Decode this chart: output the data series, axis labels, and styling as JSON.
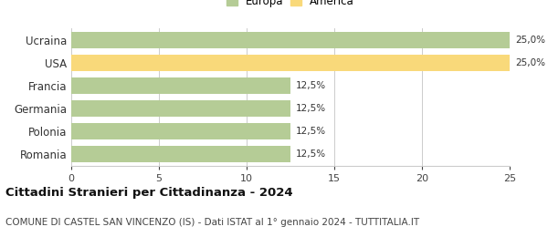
{
  "categories": [
    "Ucraina",
    "USA",
    "Francia",
    "Germania",
    "Polonia",
    "Romania"
  ],
  "values": [
    25.0,
    25.0,
    12.5,
    12.5,
    12.5,
    12.5
  ],
  "bar_colors": [
    "#b5cc96",
    "#f9d97a",
    "#b5cc96",
    "#b5cc96",
    "#b5cc96",
    "#b5cc96"
  ],
  "bar_labels": [
    "25,0%",
    "25,0%",
    "12,5%",
    "12,5%",
    "12,5%",
    "12,5%"
  ],
  "legend_labels": [
    "Europa",
    "America"
  ],
  "legend_colors": [
    "#b5cc96",
    "#f9d97a"
  ],
  "xlim": [
    0,
    25
  ],
  "xticks": [
    0,
    5,
    10,
    15,
    20,
    25
  ],
  "title": "Cittadini Stranieri per Cittadinanza - 2024",
  "subtitle": "COMUNE DI CASTEL SAN VINCENZO (IS) - Dati ISTAT al 1° gennaio 2024 - TUTTITALIA.IT",
  "title_fontsize": 9.5,
  "subtitle_fontsize": 7.5,
  "background_color": "#ffffff",
  "grid_color": "#cccccc"
}
